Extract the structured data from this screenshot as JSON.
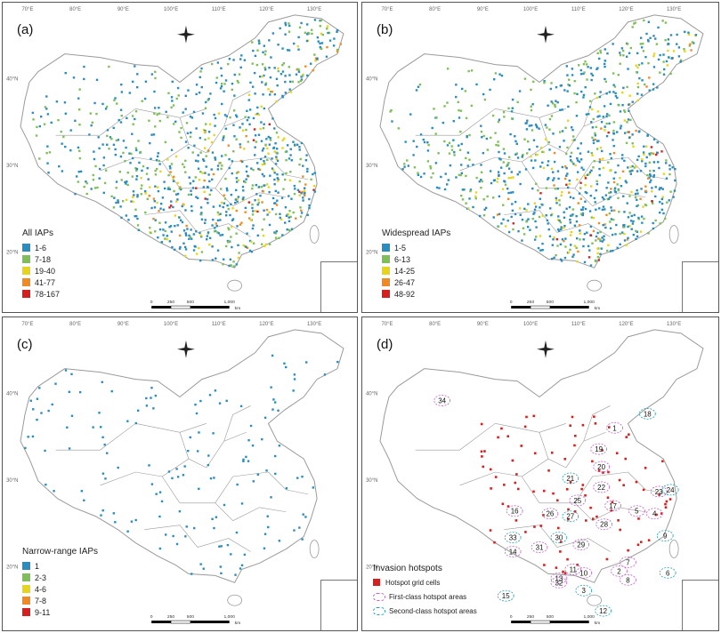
{
  "panels": [
    {
      "id": "a",
      "label": "(a)",
      "legend_title": "All IAPs",
      "legend": [
        {
          "label": "1-6",
          "color": "#2b8cbe"
        },
        {
          "label": "7-18",
          "color": "#7fbf5a"
        },
        {
          "label": "19-40",
          "color": "#e6d51a"
        },
        {
          "label": "41-77",
          "color": "#f08a24"
        },
        {
          "label": "78-167",
          "color": "#d62020"
        }
      ],
      "density": "high"
    },
    {
      "id": "b",
      "label": "(b)",
      "legend_title": "Widespread IAPs",
      "legend": [
        {
          "label": "1-5",
          "color": "#2b8cbe"
        },
        {
          "label": "6-13",
          "color": "#7fbf5a"
        },
        {
          "label": "14-25",
          "color": "#e6d51a"
        },
        {
          "label": "26-47",
          "color": "#f08a24"
        },
        {
          "label": "48-92",
          "color": "#d62020"
        }
      ],
      "density": "high"
    },
    {
      "id": "c",
      "label": "(c)",
      "legend_title": "Narrow-range IAPs",
      "legend": [
        {
          "label": "1",
          "color": "#2b8cbe"
        },
        {
          "label": "2-3",
          "color": "#7fbf5a"
        },
        {
          "label": "4-6",
          "color": "#e6d51a"
        },
        {
          "label": "7-8",
          "color": "#f08a24"
        },
        {
          "label": "9-11",
          "color": "#d62020"
        }
      ],
      "density": "low"
    },
    {
      "id": "d",
      "label": "(d)",
      "hotspot_legend_title": "Invasion hotspots",
      "hotspot_legend": [
        {
          "label": "Hotspot grid cells",
          "kind": "cell"
        },
        {
          "label": "First-class hotspot areas",
          "kind": "first"
        },
        {
          "label": "Second-class hotspot areas",
          "kind": "second"
        }
      ],
      "hotspot_numbers": [
        "1",
        "2",
        "3",
        "4",
        "5",
        "6",
        "7",
        "8",
        "9",
        "10",
        "11",
        "12",
        "13",
        "14",
        "15",
        "16",
        "17",
        "18",
        "19",
        "20",
        "21",
        "22",
        "23",
        "24",
        "25",
        "26",
        "27",
        "28",
        "29",
        "30",
        "31",
        "32",
        "33",
        "34"
      ]
    }
  ],
  "lon_labels": [
    "70°E",
    "80°E",
    "90°E",
    "100°E",
    "110°E",
    "120°E",
    "130°E"
  ],
  "lat_labels": [
    "40°N",
    "30°N",
    "20°N"
  ],
  "scale_labels": [
    "0",
    "250",
    "500",
    "1,000"
  ],
  "scale_unit": "km",
  "colors": {
    "boundary": "#9a9a9a",
    "blue": "#2b8cbe",
    "green": "#7fbf5a",
    "yellow": "#e6d51a",
    "orange": "#f08a24",
    "red": "#d62020",
    "first_class": "#c060c8",
    "second_class": "#20a0b0"
  }
}
